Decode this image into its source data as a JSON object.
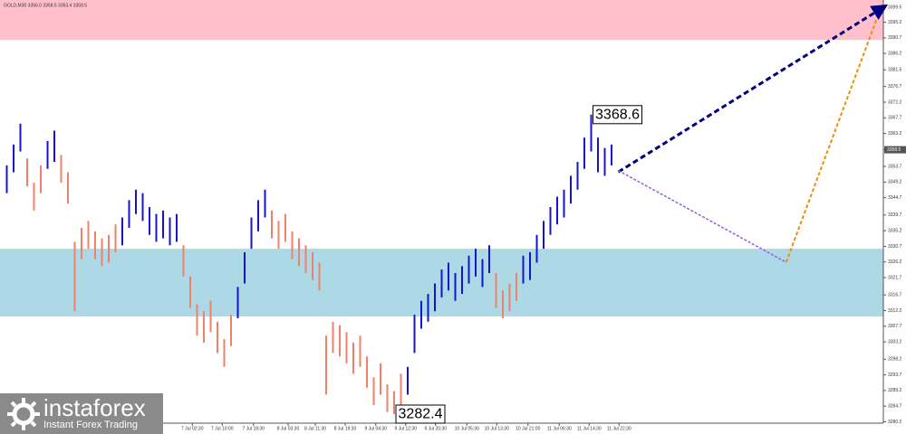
{
  "chart_data": {
    "type": "range_bar",
    "title": "GOLD,M30 3356.0 3358.5 3353.4 3358.5",
    "xlim": [
      -1,
      129
    ],
    "ylim": [
      3279.8,
      3401.6
    ],
    "yticks": [
      3399.5,
      3395.2,
      3390.7,
      3386.2,
      3381.5,
      3376.7,
      3372.2,
      3367.7,
      3363.2,
      3358.5,
      3353.7,
      3349.2,
      3344.7,
      3339.7,
      3335.2,
      3330.7,
      3326.2,
      3321.7,
      3316.7,
      3312.2,
      3307.7,
      3303.2,
      3298.2,
      3293.7,
      3289.2,
      3284.7,
      3280.2
    ],
    "xticks": [
      {
        "value": 27.3,
        "label": "7 Jul 02:30"
      },
      {
        "value": 31.7,
        "label": "7 Jul 10:00"
      },
      {
        "value": 36.3,
        "label": "7 Jul 18:30"
      },
      {
        "value": 41.4,
        "label": "8 Jul 03:30"
      },
      {
        "value": 45.4,
        "label": "8 Jul 11:30"
      },
      {
        "value": 49.8,
        "label": "8 Jul 19:30"
      },
      {
        "value": 54.3,
        "label": "9 Jul 04:30"
      },
      {
        "value": 58.7,
        "label": "9 Jul 12:30"
      },
      {
        "value": 63.1,
        "label": "9 Jul 20:30"
      },
      {
        "value": 67.7,
        "label": "10 Jul 05:30"
      },
      {
        "value": 72.1,
        "label": "10 Jul 13:30"
      },
      {
        "value": 76.7,
        "label": "10 Jul 21:00"
      },
      {
        "value": 81.3,
        "label": "11 Jul 06:30"
      },
      {
        "value": 85.7,
        "label": "11 Jul 14:30"
      },
      {
        "value": 90.1,
        "label": "11 Jul 22:30"
      }
    ],
    "zones": [
      {
        "color": "#ffc0cb",
        "range": [
          3390.1,
          3401.6
        ]
      },
      {
        "color": "#add8e6",
        "range": [
          3310.5,
          3330.0
        ]
      }
    ],
    "series": [
      {
        "color": "#1414d2",
        "x": [
          0,
          1,
          2,
          6,
          7,
          17,
          18,
          19,
          20,
          21,
          22,
          23,
          24,
          25,
          34,
          35,
          36,
          37,
          38,
          59,
          60,
          61,
          62,
          63,
          64,
          65,
          66,
          67,
          68,
          69,
          70,
          71,
          76,
          77,
          78,
          79,
          80,
          81,
          82,
          83,
          84,
          85,
          86,
          87,
          88,
          89
        ],
        "low": [
          3346,
          3352,
          3358,
          3353,
          3355,
          3331,
          3336,
          3340,
          3338,
          3334,
          3332,
          3333,
          3331,
          3332,
          3310,
          3320,
          3330,
          3335,
          3339,
          3288,
          3300,
          3307,
          3309,
          3312,
          3316,
          3318,
          3315,
          3317,
          3320,
          3322,
          3319,
          3323,
          3320,
          3321,
          3326,
          3330,
          3334,
          3337,
          3339,
          3343,
          3347,
          3353,
          3358,
          3352,
          3351,
          3354
        ],
        "high": [
          3354,
          3360,
          3366,
          3361,
          3364,
          3339,
          3344,
          3347,
          3346,
          3342,
          3340,
          3341,
          3339,
          3340,
          3319,
          3329,
          3339,
          3344,
          3347,
          3296,
          3311,
          3315,
          3317,
          3320,
          3324,
          3326,
          3323,
          3325,
          3328,
          3330,
          3327,
          3331,
          3328,
          3329,
          3334,
          3338,
          3342,
          3345,
          3347,
          3351,
          3355,
          3362,
          3368.6,
          3362,
          3359,
          3360
        ]
      },
      {
        "color": "#f0806a",
        "x": [
          3,
          4,
          5,
          8,
          9,
          10,
          11,
          12,
          13,
          14,
          15,
          16,
          26,
          27,
          28,
          29,
          30,
          31,
          32,
          33,
          39,
          40,
          41,
          42,
          43,
          44,
          45,
          46,
          47,
          48,
          49,
          50,
          51,
          52,
          53,
          54,
          55,
          56,
          57,
          58,
          72,
          73,
          74,
          75
        ],
        "low": [
          3348,
          3341,
          3346,
          3349,
          3343,
          3312,
          3327,
          3330,
          3327,
          3325,
          3326,
          3329,
          3322,
          3313,
          3305,
          3303,
          3306,
          3300,
          3296,
          3302,
          3333,
          3330,
          3332,
          3327,
          3325,
          3323,
          3321,
          3318,
          3288,
          3300,
          3299,
          3297,
          3294,
          3296,
          3290,
          3285,
          3288,
          3283,
          3282.4,
          3285,
          3313,
          3310,
          3312,
          3315
        ],
        "high": [
          3356,
          3349,
          3354,
          3357,
          3352,
          3332,
          3336,
          3338,
          3335,
          3333,
          3334,
          3337,
          3331,
          3322,
          3314,
          3312,
          3315,
          3309,
          3304,
          3311,
          3341,
          3338,
          3340,
          3335,
          3333,
          3331,
          3329,
          3326,
          3305,
          3309,
          3308,
          3306,
          3303,
          3305,
          3299,
          3293,
          3297,
          3291,
          3289,
          3294,
          3323,
          3318,
          3320,
          3323
        ]
      }
    ],
    "price_labels": [
      {
        "x": 86,
        "value": 3368.6
      },
      {
        "x": 57,
        "value": 3282.4
      }
    ],
    "last_price": 3358.5,
    "arrows": [
      {
        "color": "#000080",
        "width": 3,
        "head": true,
        "from": [
          90,
          3352.1
        ],
        "to": [
          129,
          3399.5
        ]
      },
      {
        "color": "#9b5bd6",
        "width": 1.5,
        "head": false,
        "from": [
          90,
          3352.5
        ],
        "to": [
          114.7,
          3326.1
        ]
      },
      {
        "color": "#f0900a",
        "width": 2,
        "head": false,
        "from": [
          114.7,
          3326.1
        ],
        "to": [
          128,
          3396
        ]
      }
    ]
  },
  "logo": {
    "name": "instaforex",
    "tagline": "Instant Forex Trading"
  }
}
